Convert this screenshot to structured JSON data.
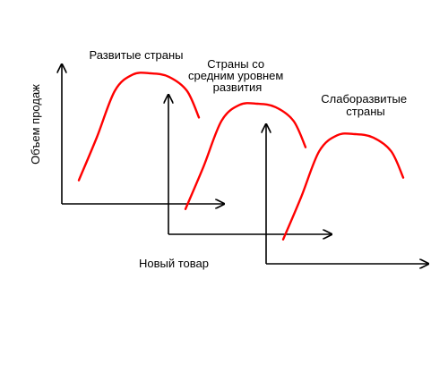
{
  "chart_data": {
    "type": "line",
    "ylabel": "Объем продаж",
    "xlabel": "Новый товар",
    "grid": false,
    "legend": "none",
    "curve_color": "#ff0000",
    "axis_color": "#000000",
    "series": [
      {
        "name": "Развитые страны",
        "name_lines": [
          "Развитые страны"
        ],
        "x": [
          0,
          0.15,
          0.3,
          0.45,
          0.6,
          0.75,
          0.9,
          1.0
        ],
        "y": [
          0.08,
          0.45,
          0.85,
          0.99,
          1.0,
          0.97,
          0.85,
          0.62
        ]
      },
      {
        "name": "Страны со средним уровнем развития",
        "name_lines": [
          "Страны со",
          "средним уровнем",
          "развития"
        ],
        "x": [
          0,
          0.15,
          0.3,
          0.45,
          0.6,
          0.75,
          0.9,
          1.0
        ],
        "y": [
          0.08,
          0.45,
          0.85,
          0.99,
          1.0,
          0.97,
          0.85,
          0.62
        ]
      },
      {
        "name": "Слаборазвитые страны",
        "name_lines": [
          "Слаборазвитые",
          "страны"
        ],
        "x": [
          0,
          0.15,
          0.3,
          0.45,
          0.6,
          0.75,
          0.9,
          1.0
        ],
        "y": [
          0.08,
          0.45,
          0.85,
          0.99,
          1.0,
          0.97,
          0.85,
          0.62
        ]
      }
    ]
  }
}
